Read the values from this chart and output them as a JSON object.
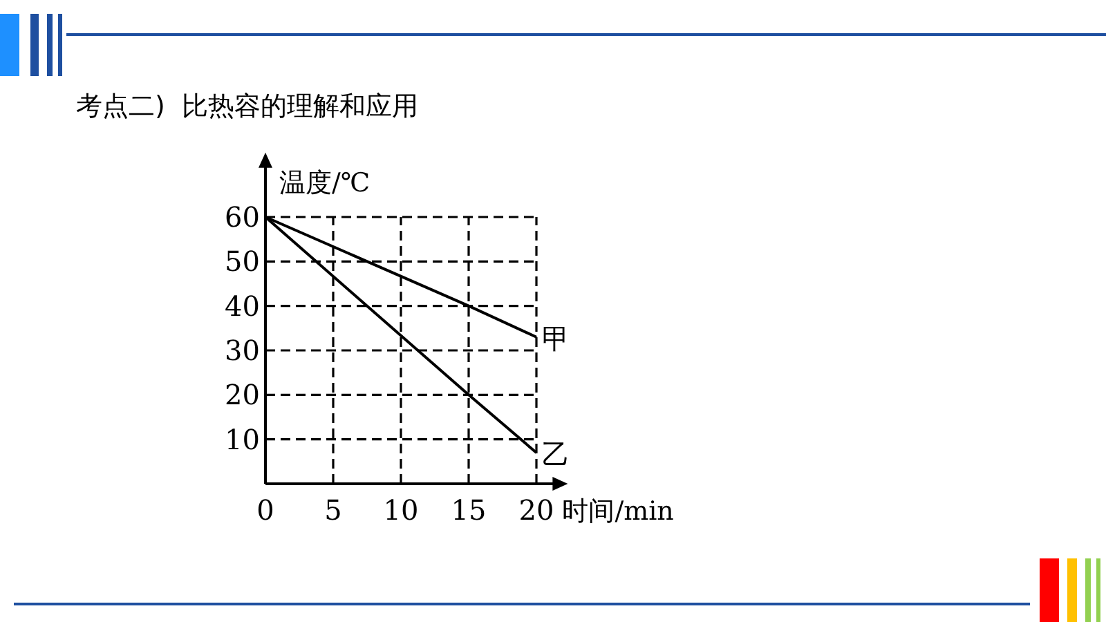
{
  "chart_data": {
    "type": "line",
    "title": "考点二)  比热容的理解和应用",
    "xlabel": "时间/min",
    "ylabel": "温度/℃",
    "x": [
      0,
      15,
      20
    ],
    "series": [
      {
        "name": "甲",
        "color": "#000000",
        "values": [
          60,
          40,
          33
        ]
      },
      {
        "name": "乙",
        "color": "#000000",
        "values": [
          60,
          20,
          7
        ]
      }
    ],
    "xlim": [
      0,
      21.5
    ],
    "ylim": [
      0,
      72
    ],
    "xticks": [
      0,
      5,
      10,
      15,
      20
    ],
    "yticks": [
      {
        "value": 0,
        "label": null
      },
      10,
      20,
      30,
      40,
      50,
      60
    ],
    "grid": true,
    "line_style": "solid",
    "marker": "none"
  }
}
